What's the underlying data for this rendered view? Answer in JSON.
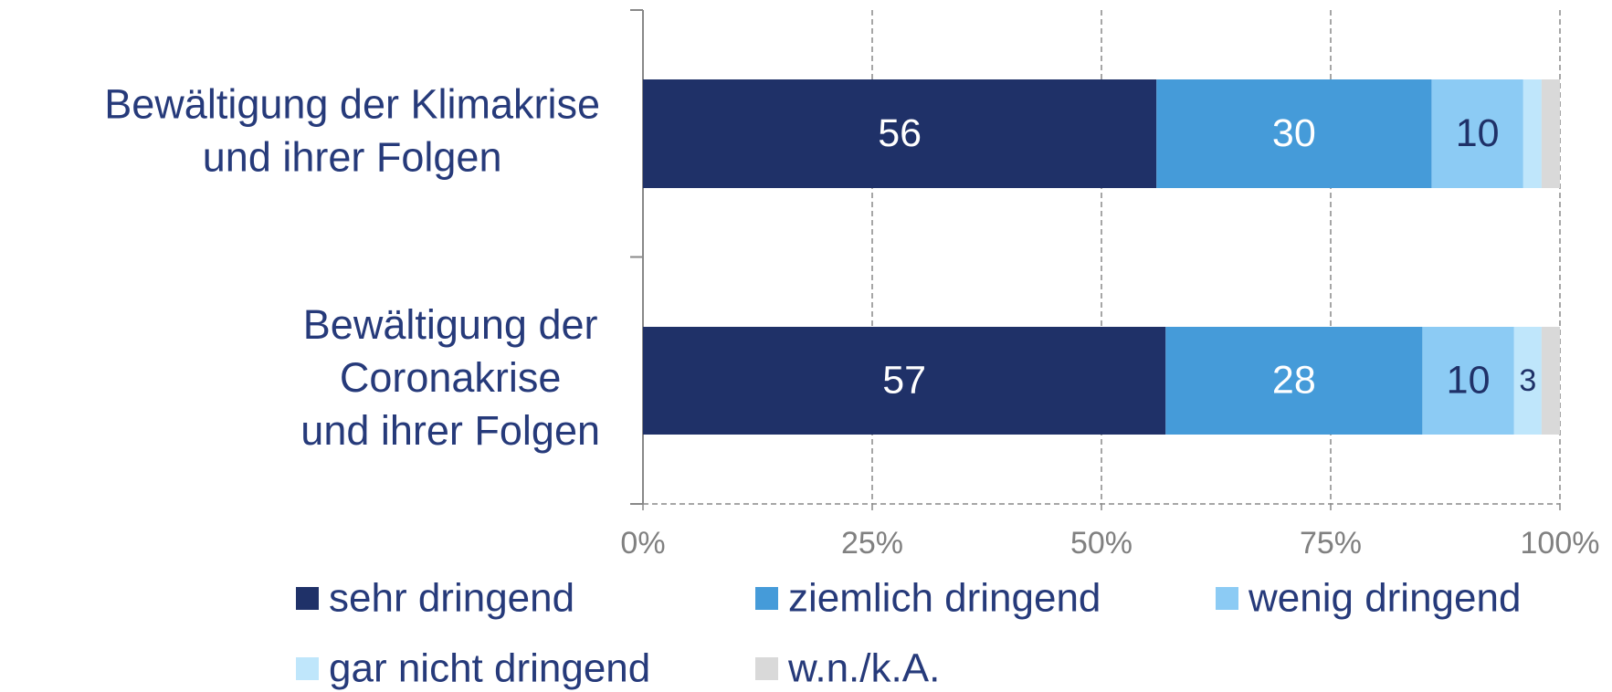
{
  "chart_data": {
    "type": "stacked_barh",
    "categories": [
      "Bewältigung der Klimakrise\nund ihrer Folgen",
      "Bewältigung der\nCoronakrise\nund ihrer Folgen"
    ],
    "series": [
      {
        "name": "sehr dringend",
        "color": "#1f3168",
        "values": [
          56,
          57
        ],
        "value_labels": [
          "56",
          "57"
        ],
        "label_color": "#ffffff"
      },
      {
        "name": "ziemlich dringend",
        "color": "#459bd9",
        "values": [
          30,
          28
        ],
        "value_labels": [
          "30",
          "28"
        ],
        "label_color": "#ffffff"
      },
      {
        "name": "wenig dringend",
        "color": "#8ccbf4",
        "values": [
          10,
          10
        ],
        "value_labels": [
          "10",
          "10"
        ],
        "label_color": "#1f3168"
      },
      {
        "name": "gar nicht dringend",
        "color": "#bfe6fb",
        "values": [
          2,
          3
        ],
        "value_labels": [
          null,
          "3"
        ],
        "label_color": "#1f3168"
      },
      {
        "name": "w.n./k.A.",
        "color": "#d9d9d9",
        "values": [
          2,
          2
        ],
        "value_labels": [
          null,
          null
        ],
        "label_color": "#1f3168"
      }
    ],
    "xlim": [
      0,
      100
    ],
    "xticks": [
      {
        "value": 0,
        "label": "0%"
      },
      {
        "value": 25,
        "label": "25%"
      },
      {
        "value": 50,
        "label": "50%"
      },
      {
        "value": 75,
        "label": "75%"
      },
      {
        "value": 100,
        "label": "100%"
      }
    ],
    "grid": true
  }
}
